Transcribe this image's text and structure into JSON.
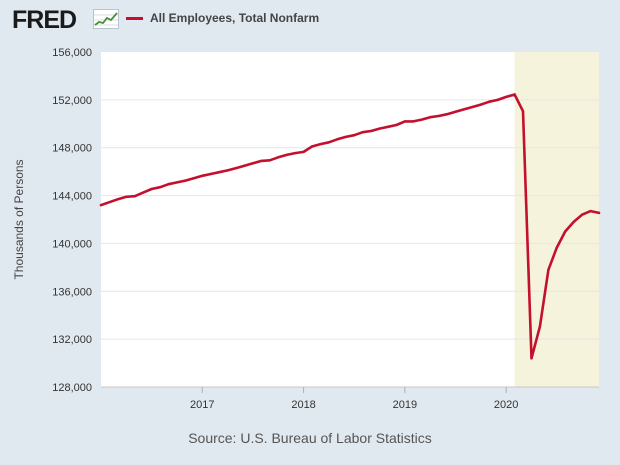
{
  "header": {
    "logo_text": "FRED",
    "logo_icon": "chart-line-icon",
    "legend_label": "All Employees, Total Nonfarm"
  },
  "source": "Source: U.S. Bureau of Labor Statistics",
  "colors": {
    "background": "#e1e9f0",
    "plot_background": "#ffffff",
    "series": "#c4102f",
    "recession_shading": "#f5f3dc",
    "gridline": "#e6e6e6"
  },
  "chart_data": {
    "type": "line",
    "title": "",
    "ylabel": "Thousands of Persons",
    "xlabel": "",
    "ylim": [
      128000,
      156000
    ],
    "yticks": [
      128000,
      132000,
      136000,
      140000,
      144000,
      148000,
      152000,
      156000
    ],
    "ytick_labels": [
      "128,000",
      "132,000",
      "136,000",
      "140,000",
      "144,000",
      "148,000",
      "152,000",
      "156,000"
    ],
    "xlim": [
      "2016-01",
      "2020-12"
    ],
    "xticks": [
      "2017-01",
      "2018-01",
      "2019-01",
      "2020-01"
    ],
    "xtick_labels": [
      "2017",
      "2018",
      "2019",
      "2020"
    ],
    "grid": true,
    "legend": "top-left",
    "recession_shading": [
      {
        "start": "2020-02",
        "end": "2020-12"
      }
    ],
    "series": [
      {
        "name": "All Employees, Total Nonfarm",
        "frequency": "monthly",
        "start": "2016-01",
        "values": [
          143200,
          143450,
          143700,
          143900,
          143950,
          144250,
          144550,
          144700,
          144950,
          145100,
          145250,
          145450,
          145650,
          145800,
          145950,
          146100,
          146300,
          146500,
          146700,
          146900,
          146950,
          147200,
          147400,
          147550,
          147650,
          148100,
          148300,
          148450,
          148700,
          148900,
          149050,
          149300,
          149400,
          149600,
          149750,
          149900,
          150200,
          150200,
          150350,
          150550,
          150650,
          150800,
          151000,
          151200,
          151400,
          151600,
          151850,
          152000,
          152250,
          152450,
          151050,
          130400,
          133050,
          137800,
          139650,
          141000,
          141800,
          142400,
          142700,
          142550
        ]
      }
    ]
  }
}
